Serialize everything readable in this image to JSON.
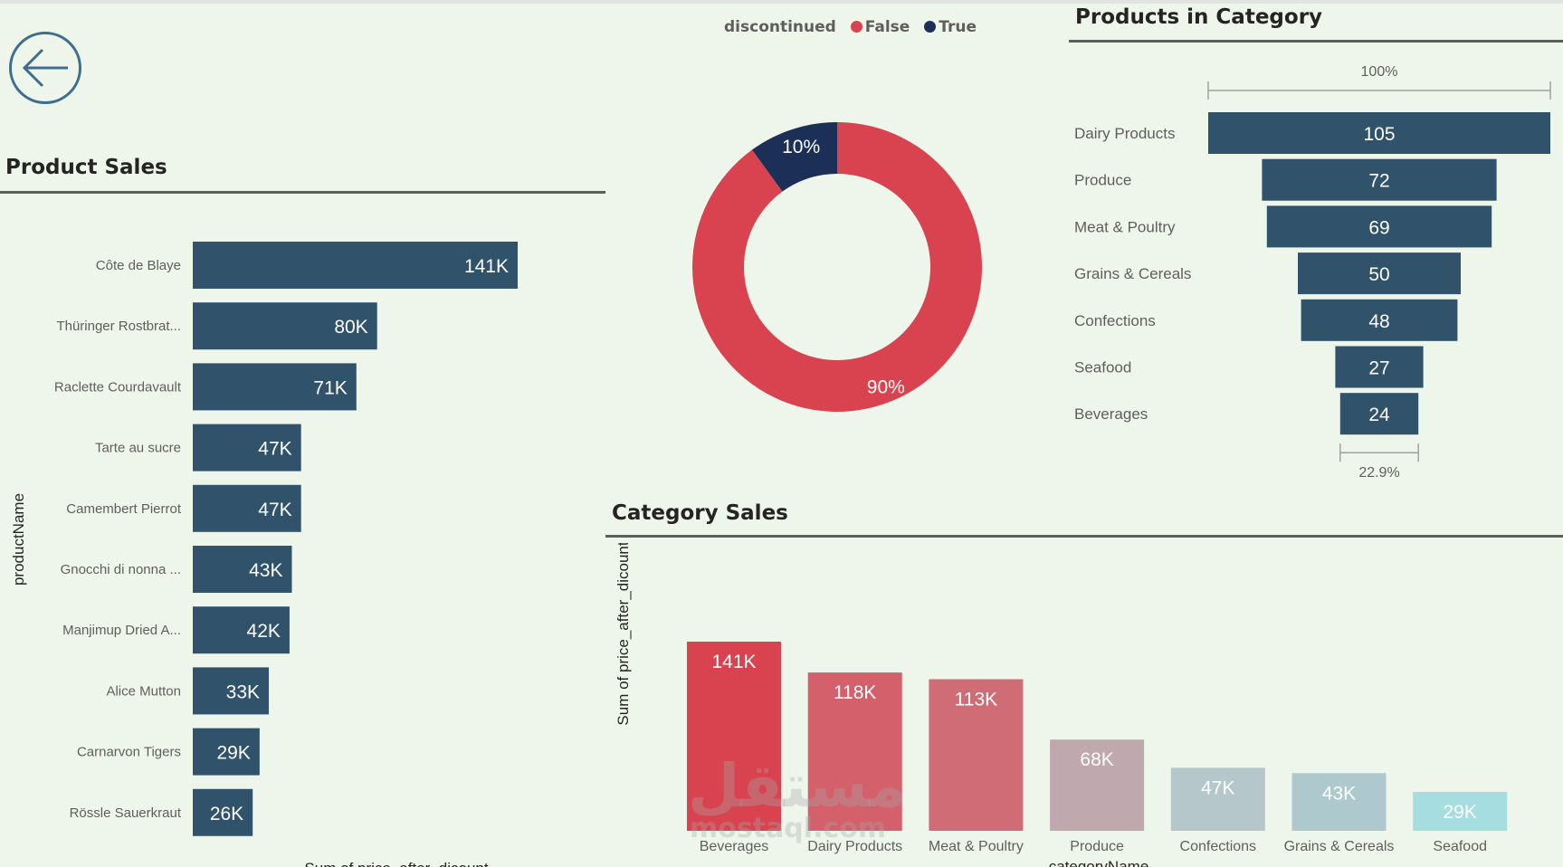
{
  "header": {
    "back_icon": "arrow-left-circle-icon"
  },
  "product_sales": {
    "title": "Product Sales"
  },
  "category_sales": {
    "title": "Category Sales"
  },
  "products_in_category": {
    "title": "Products in Category"
  },
  "colors": {
    "dark_bar": "#30526b",
    "red": "#d9434f",
    "navy": "#1b2f57"
  },
  "chart_data": [
    {
      "id": "product_sales",
      "type": "bar",
      "orientation": "horizontal",
      "title": "Product Sales",
      "xlabel": "Sum of price_after_dicount",
      "ylabel": "productName",
      "categories": [
        "Côte de Blaye",
        "Thüringer Rostbrat...",
        "Raclette Courdavault",
        "Tarte au sucre",
        "Camembert Pierrot",
        "Gnocchi di nonna ...",
        "Manjimup Dried A...",
        "Alice Mutton",
        "Carnarvon Tigers",
        "Rössle Sauerkraut"
      ],
      "values": [
        141000,
        80000,
        71000,
        47000,
        47000,
        43000,
        42000,
        33000,
        29000,
        26000
      ],
      "labels": [
        "141K",
        "80K",
        "71K",
        "47K",
        "47K",
        "43K",
        "42K",
        "33K",
        "29K",
        "26K"
      ],
      "xlim": [
        0,
        260000
      ]
    },
    {
      "id": "discontinued",
      "type": "pie",
      "donut": true,
      "legend_title": "discontinued",
      "categories": [
        "False",
        "True"
      ],
      "values": [
        90,
        10
      ],
      "labels": [
        "90%",
        "10%"
      ],
      "colors": [
        "#d9434f",
        "#1b2f57"
      ]
    },
    {
      "id": "products_in_category",
      "type": "bar",
      "subtype": "funnel",
      "title": "Products in Category",
      "categories": [
        "Dairy Products",
        "Produce",
        "Meat & Poultry",
        "Grains & Cereals",
        "Confections",
        "Seafood",
        "Beverages"
      ],
      "values": [
        105,
        72,
        69,
        50,
        48,
        27,
        24
      ],
      "top_label": "100%",
      "bottom_label": "22.9%"
    },
    {
      "id": "category_sales",
      "type": "bar",
      "title": "Category Sales",
      "xlabel": "categoryName",
      "ylabel": "Sum of price_after_dicount",
      "categories": [
        "Beverages",
        "Dairy Products",
        "Meat & Poultry",
        "Produce",
        "Confections",
        "Grains & Cereals",
        "Seafood"
      ],
      "values": [
        141000,
        118000,
        113000,
        68000,
        47000,
        43000,
        29000
      ],
      "labels": [
        "141K",
        "118K",
        "113K",
        "68K",
        "47K",
        "43K",
        "29K"
      ],
      "colors": [
        "#d9434f",
        "#d3606a",
        "#cf6c75",
        "#bfa8ae",
        "#b5c7cb",
        "#aec9cd",
        "#a6dde1"
      ],
      "ylim": [
        0,
        141000
      ]
    }
  ]
}
